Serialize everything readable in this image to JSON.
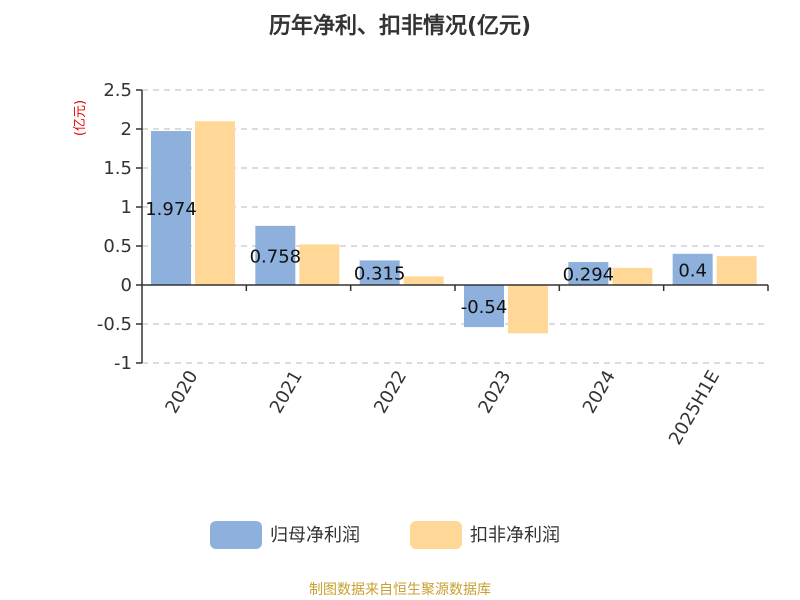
{
  "chart_data": {
    "type": "bar",
    "title": "历年净利、扣非情况(亿元)",
    "ylabel": "(亿元)",
    "categories": [
      "2020",
      "2021",
      "2022",
      "2023",
      "2024",
      "2025H1E"
    ],
    "series": [
      {
        "name": "归母净利润",
        "color": "#8eb0dc",
        "values": [
          1.974,
          0.758,
          0.315,
          -0.54,
          0.294,
          0.4
        ],
        "labels": [
          "1.974",
          "0.758",
          "0.315",
          "-0.54",
          "0.294",
          "0.4"
        ]
      },
      {
        "name": "扣非净利润",
        "color": "#ffd897",
        "values": [
          2.1,
          0.52,
          0.11,
          -0.62,
          0.22,
          0.37
        ]
      }
    ],
    "yticks": [
      "2.5",
      "2",
      "1.5",
      "1",
      "0.5",
      "0",
      "-0.5",
      "-1"
    ],
    "ylim": [
      -1,
      2.5
    ],
    "grid": true,
    "legend_position": "bottom"
  },
  "source": "制图数据来自恒生聚源数据库"
}
